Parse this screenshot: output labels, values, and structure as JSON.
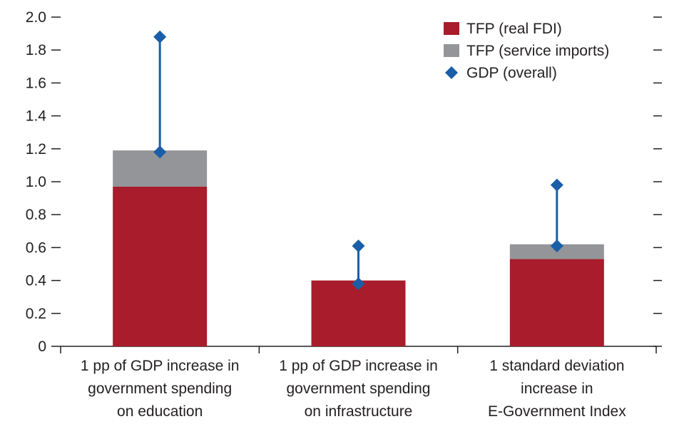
{
  "chart_data": {
    "type": "bar",
    "stacked": true,
    "title": "",
    "xlabel": "",
    "ylabel": "",
    "ylim": [
      0,
      2.0
    ],
    "yticks": [
      "0",
      "0.2",
      "0.4",
      "0.6",
      "0.8",
      "1.0",
      "1.2",
      "1.4",
      "1.6",
      "1.8",
      "2.0"
    ],
    "grid": false,
    "legend_position": "top-right",
    "categories": [
      [
        "1 pp of GDP increase in",
        "government spending",
        "on education"
      ],
      [
        "1 pp of GDP increase in",
        "government spending",
        "on infrastructure"
      ],
      [
        "1 standard deviation",
        "increase in",
        "E-Government Index"
      ]
    ],
    "series": [
      {
        "name": "TFP (real FDI)",
        "kind": "bar",
        "color": "#a81c2c",
        "values": [
          0.97,
          0.4,
          0.53
        ]
      },
      {
        "name": "TFP (service imports)",
        "kind": "bar",
        "color": "#939598",
        "values": [
          0.22,
          0.0,
          0.09
        ]
      },
      {
        "name": "GDP (overall)",
        "kind": "marker",
        "color": "#1a5ea8",
        "low": [
          1.18,
          0.38,
          0.61
        ],
        "high": [
          1.88,
          0.61,
          0.98
        ]
      }
    ]
  }
}
